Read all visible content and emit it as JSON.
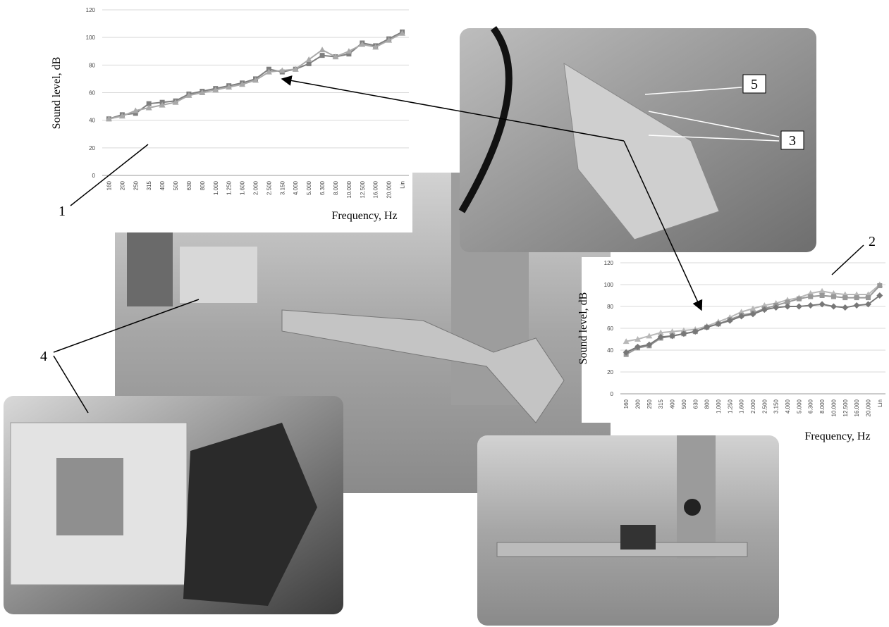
{
  "chart_data": [
    {
      "type": "line",
      "ylabel": "Sound level, dB",
      "xlabel": "Frequency, Hz",
      "categories": [
        "160",
        "200",
        "250",
        "315",
        "400",
        "500",
        "630",
        "800",
        "1.000",
        "1.250",
        "1.600",
        "2.000",
        "2.500",
        "3.150",
        "4.000",
        "5.000",
        "6.300",
        "8.000",
        "10.000",
        "12.500",
        "16.000",
        "20.000",
        "Lin"
      ],
      "series": [
        {
          "color": "#7f7f7f",
          "marker": "square",
          "values": [
            41,
            44,
            45,
            52,
            53,
            54,
            59,
            61,
            63,
            65,
            67,
            70,
            77,
            75,
            77,
            81,
            87,
            86,
            88,
            96,
            94,
            99,
            104
          ]
        },
        {
          "color": "#a9a9a9",
          "marker": "triangle",
          "values": [
            41,
            43,
            47,
            49,
            51,
            53,
            58,
            60,
            62,
            64,
            66,
            69,
            75,
            76,
            77,
            84,
            91,
            86,
            90,
            95,
            93,
            98,
            103
          ]
        }
      ],
      "ylim": [
        0,
        120
      ],
      "yticks": [
        0,
        20,
        40,
        60,
        80,
        100,
        120
      ],
      "grid": true
    },
    {
      "type": "line",
      "ylabel": "Sound level, dB",
      "xlabel": "Frequency, Hz",
      "categories": [
        "160",
        "200",
        "250",
        "315",
        "400",
        "500",
        "630",
        "800",
        "1.000",
        "1.250",
        "1.600",
        "2.000",
        "2.500",
        "3.150",
        "4.000",
        "5.000",
        "6.300",
        "8.000",
        "10.000",
        "12.500",
        "16.000",
        "20.000",
        "Lin"
      ],
      "series": [
        {
          "color": "#b8b8b8",
          "marker": "triangle",
          "values": [
            48,
            50,
            53,
            56,
            57,
            58,
            59,
            62,
            66,
            70,
            75,
            78,
            81,
            83,
            86,
            88,
            92,
            94,
            92,
            91,
            91,
            91,
            100
          ]
        },
        {
          "color": "#989898",
          "marker": "square",
          "values": [
            36,
            42,
            44,
            51,
            53,
            55,
            57,
            61,
            64,
            68,
            72,
            74,
            78,
            81,
            84,
            87,
            89,
            90,
            89,
            88,
            88,
            88,
            99
          ]
        },
        {
          "color": "#777777",
          "marker": "diamond",
          "values": [
            38,
            43,
            45,
            52,
            53,
            55,
            57,
            61,
            64,
            67,
            71,
            73,
            77,
            79,
            80,
            80,
            81,
            82,
            80,
            79,
            81,
            82,
            90
          ]
        }
      ],
      "ylim": [
        0,
        120
      ],
      "yticks": [
        0,
        20,
        40,
        60,
        80,
        100,
        120
      ],
      "grid": true
    }
  ],
  "callouts": [
    "1",
    "2",
    "3",
    "4",
    "5"
  ]
}
